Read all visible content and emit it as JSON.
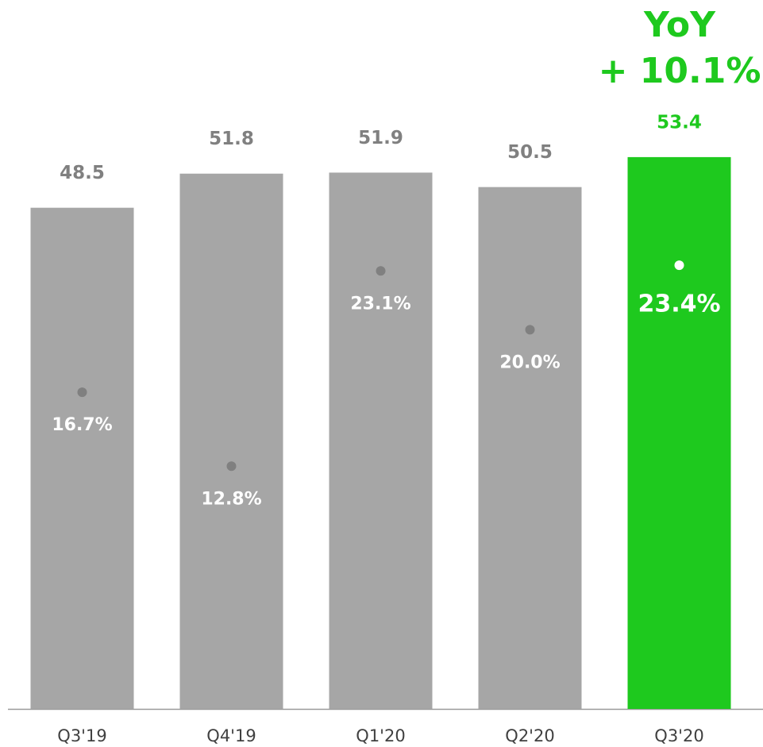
{
  "chart_data": {
    "type": "bar",
    "categories": [
      "Q3'19",
      "Q4'19",
      "Q1'20",
      "Q2'20",
      "Q3'20"
    ],
    "series": [
      {
        "values": [
          48.5,
          51.8,
          51.9,
          50.5,
          53.4
        ],
        "colors": [
          "#a6a6a6",
          "#a6a6a6",
          "#a6a6a6",
          "#a6a6a6",
          "#1ec91e"
        ],
        "label_colors": [
          "#808080",
          "#808080",
          "#808080",
          "#808080",
          "#1ec91e"
        ]
      },
      {
        "type": "scatter",
        "axis": "y2",
        "values": [
          16.7,
          12.8,
          23.1,
          20.0,
          23.4
        ],
        "value_labels": [
          "16.7%",
          "12.8%",
          "23.1%",
          "20.0%",
          "23.4%"
        ],
        "colors": [
          "#808080",
          "#808080",
          "#808080",
          "#808080",
          "#ffffff"
        ]
      }
    ],
    "ylim": [
      0,
      60
    ],
    "y2lim": [
      0,
      32.7
    ],
    "annotations": [
      "YoY",
      "+ 10.1%"
    ],
    "annotation_color": "#1ec91e",
    "grid": false
  }
}
